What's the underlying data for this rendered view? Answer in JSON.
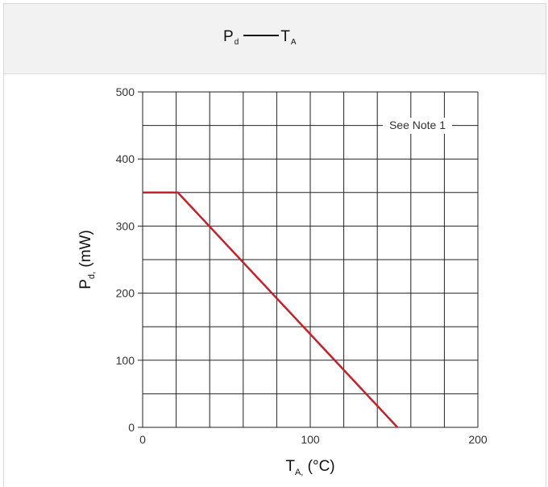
{
  "header": {
    "title_left": "P",
    "title_left_sub": "d",
    "title_right": "T",
    "title_right_sub": "A"
  },
  "chart_data": {
    "type": "line",
    "title": "Pd — TA",
    "xlabel": "TA, (°C)",
    "ylabel": "Pd, (mW)",
    "xlim": [
      0,
      200
    ],
    "ylim": [
      0,
      500
    ],
    "x_ticks": [
      "0",
      "100",
      "200"
    ],
    "y_ticks": [
      "0",
      "100",
      "200",
      "300",
      "400",
      "500"
    ],
    "grid": true,
    "annotation": "See Note 1",
    "series": [
      {
        "color": "#c8202a",
        "points": [
          [
            0,
            350
          ],
          [
            21,
            350
          ],
          [
            152,
            0
          ]
        ]
      }
    ]
  }
}
